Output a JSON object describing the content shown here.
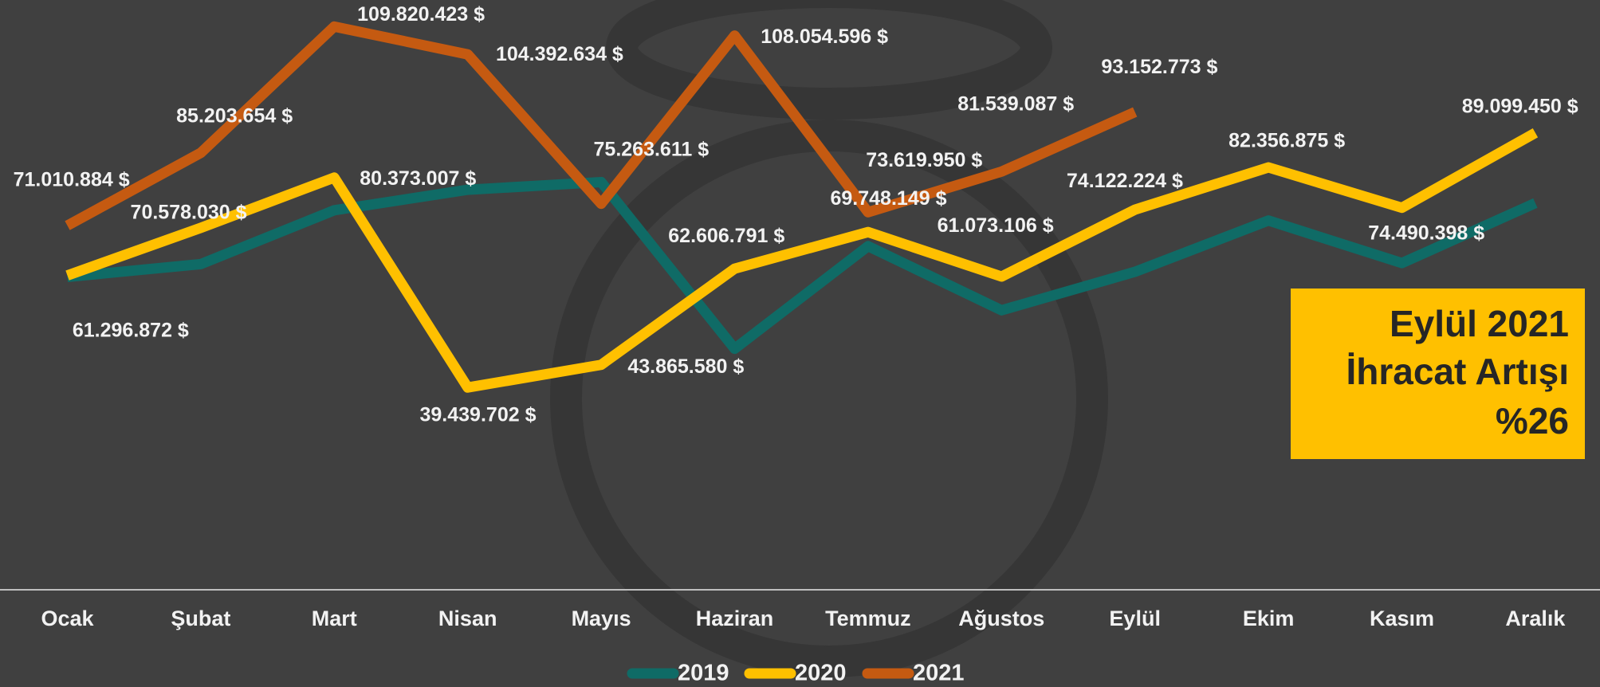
{
  "chart_data": {
    "type": "line",
    "categories": [
      "Ocak",
      "Şubat",
      "Mart",
      "Nisan",
      "Mayıs",
      "Haziran",
      "Temmuz",
      "Ağustos",
      "Eylül",
      "Ekim",
      "Kasım",
      "Aralık"
    ],
    "ylim": [
      0,
      115000000
    ],
    "series": [
      {
        "name": "2019",
        "color": "#0f6b66",
        "values": [
          61000000,
          63500000,
          74000000,
          78000000,
          79500000,
          47000000,
          67000000,
          54500000,
          62000000,
          72000000,
          63700000,
          75400000
        ]
      },
      {
        "name": "2020",
        "color": "#ffc000",
        "values": [
          61296872,
          70578030,
          80373007,
          39439702,
          43865580,
          62606791,
          69748149,
          61073106,
          74122224,
          82356875,
          74490398,
          89099450
        ],
        "value_labels": [
          "61.296.872 $",
          "70.578.030 $",
          "80.373.007 $",
          "39.439.702 $",
          "43.865.580 $",
          "62.606.791 $",
          "69.748.149 $",
          "61.073.106 $",
          "74.122.224 $",
          "82.356.875 $",
          "74.490.398 $",
          "89.099.450 $"
        ]
      },
      {
        "name": "2021",
        "color": "#c55a11",
        "values": [
          71010884,
          85203654,
          109820423,
          104392634,
          75263611,
          108054596,
          73619950,
          81539087,
          93152773,
          null,
          null,
          null
        ],
        "value_labels": [
          "71.010.884 $",
          "85.203.654 $",
          "109.820.423 $",
          "104.392.634 $",
          "75.263.611 $",
          "108.054.596 $",
          "73.619.950 $",
          "81.539.087 $",
          "93.152.773 $",
          null,
          null,
          null
        ]
      }
    ],
    "annotation": [
      "Eylül 2021",
      "İhracat Artışı",
      "%26"
    ],
    "annotation_color": "#ffc000"
  }
}
